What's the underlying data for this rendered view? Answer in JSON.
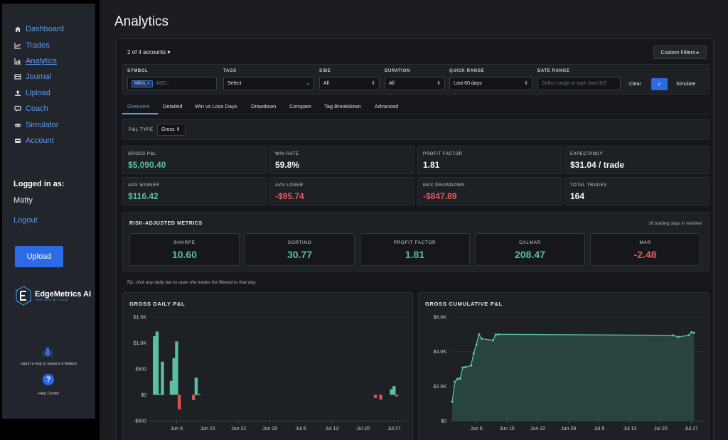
{
  "nav": [
    {
      "label": "Dashboard",
      "icon": "home-icon"
    },
    {
      "label": "Trades",
      "icon": "line-chart-icon"
    },
    {
      "label": "Analytics",
      "icon": "bar-chart-icon"
    },
    {
      "label": "Journal",
      "icon": "book-icon"
    },
    {
      "label": "Upload",
      "icon": "upload-icon"
    },
    {
      "label": "Coach",
      "icon": "chat-icon"
    },
    {
      "label": "Simulator",
      "icon": "gamepad-icon"
    },
    {
      "label": "Account",
      "icon": "card-icon"
    }
  ],
  "user": {
    "logged_label": "Logged in as:",
    "name": "Matty",
    "logout": "Logout"
  },
  "sidebar_upload": "Upload",
  "logo": {
    "name": "EdgeMetrics AI",
    "tagline": "TURN DATA INTO EDGE"
  },
  "help": {
    "bug": "report a bug or request a feature",
    "center": "Help Center"
  },
  "page_title": "Analytics",
  "accounts": "2 of 4 accounts ▾",
  "custom_filters": "Custom Filters ▸",
  "filters": {
    "symbol_label": "SYMBOL",
    "symbol_chip": "MRVL ×",
    "symbol_placeholder": "ADD...",
    "tags_label": "TAGS",
    "tags_value": "Select",
    "side_label": "SIDE",
    "side_value": "All",
    "duration_label": "DURATION",
    "duration_value": "All",
    "quick_label": "QUICK RANGE",
    "quick_value": "Last 60 days",
    "date_label": "DATE RANGE",
    "date_placeholder": "Select range or type Jan/10/2",
    "clear": "Clear",
    "apply": "✓",
    "simulate": "Simulate"
  },
  "tabs": [
    "Overview",
    "Detailed",
    "Win vs Loss Days",
    "Drawdown",
    "Compare",
    "Tag Breakdown",
    "Advanced"
  ],
  "pl_type": {
    "label": "P&L TYPE",
    "value": "Gross ⇕"
  },
  "stats": [
    {
      "label": "GROSS P&L",
      "value": "$5,090.40",
      "tone": "pos"
    },
    {
      "label": "WIN RATE",
      "value": "59.8%",
      "tone": "neu"
    },
    {
      "label": "PROFIT FACTOR",
      "value": "1.81",
      "tone": "neu"
    },
    {
      "label": "EXPECTANCY",
      "value": "$31.04 / trade",
      "tone": "neu"
    },
    {
      "label": "AVG WINNER",
      "value": "$116.42",
      "tone": "pos"
    },
    {
      "label": "AVG LOSER",
      "value": "-$95.74",
      "tone": "neg"
    },
    {
      "label": "MAX DRAWDOWN",
      "value": "-$847.89",
      "tone": "neg"
    },
    {
      "label": "TOTAL TRADES",
      "value": "164",
      "tone": "neu"
    }
  ],
  "risk": {
    "title": "RISK-ADJUSTED METRICS",
    "note": "16 trading days in window",
    "cards": [
      {
        "label": "SHARPE",
        "value": "10.60",
        "tone": "pos"
      },
      {
        "label": "SORTINO",
        "value": "30.77",
        "tone": "pos"
      },
      {
        "label": "PROFIT FACTOR",
        "value": "1.81",
        "tone": "pos"
      },
      {
        "label": "CALMAR",
        "value": "208.47",
        "tone": "pos"
      },
      {
        "label": "MAR",
        "value": "-2.48",
        "tone": "neg"
      }
    ]
  },
  "tip": "Tip: click any daily bar to open the trades list filtered to that day.",
  "colors": {
    "positive": "#5bbfa4",
    "negative": "#d9534f",
    "accent": "#2d6be6"
  },
  "chart_data": [
    {
      "type": "bar",
      "title": "GROSS DAILY P&L",
      "ytick_labels": [
        "$1.5K",
        "$1.0K",
        "$500",
        "$0",
        "-$500"
      ],
      "ytick_values": [
        1500,
        1000,
        500,
        0,
        -500
      ],
      "ylim": [
        -500,
        1500
      ],
      "xtick_labels": [
        "Jun 8",
        "Jun 15",
        "Jun 22",
        "Jun 29",
        "Jul 6",
        "Jul 13",
        "Jul 20",
        "Jul 27"
      ],
      "xlim_days": [
        0,
        58
      ],
      "xtick_days": [
        6,
        13,
        20,
        27,
        34,
        41,
        48,
        55
      ],
      "bars": [
        {
          "day": 1.0,
          "value": 1130
        },
        {
          "day": 1.6,
          "value": 1220
        },
        {
          "day": 2.2,
          "value": 20
        },
        {
          "day": 2.8,
          "value": 640
        },
        {
          "day": 4.8,
          "value": 270
        },
        {
          "day": 5.4,
          "value": 710
        },
        {
          "day": 6.0,
          "value": 1030
        },
        {
          "day": 6.6,
          "value": -280
        },
        {
          "day": 9.8,
          "value": -100
        },
        {
          "day": 10.4,
          "value": 330
        },
        {
          "day": 11.0,
          "value": 20
        },
        {
          "day": 50.8,
          "value": -60
        },
        {
          "day": 52.0,
          "value": -90
        },
        {
          "day": 54.4,
          "value": 110
        },
        {
          "day": 55.0,
          "value": 170
        },
        {
          "day": 55.6,
          "value": -30
        }
      ]
    },
    {
      "type": "area",
      "title": "GROSS CUMULATIVE P&L",
      "ytick_labels": [
        "$6.0K",
        "$4.0K",
        "$2.0K",
        "$0"
      ],
      "ytick_values": [
        6000,
        4000,
        2000,
        0
      ],
      "ylim": [
        0,
        6000
      ],
      "xtick_labels": [
        "Jun 8",
        "Jun 15",
        "Jun 22",
        "Jun 29",
        "Jul 6",
        "Jul 13",
        "Jul 20",
        "Jul 27"
      ],
      "xlim_days": [
        0,
        58
      ],
      "xtick_days": [
        6,
        13,
        20,
        27,
        34,
        41,
        48,
        55
      ],
      "points": [
        {
          "day": 0.5,
          "value": 1100
        },
        {
          "day": 1.1,
          "value": 2250
        },
        {
          "day": 1.7,
          "value": 2420
        },
        {
          "day": 2.3,
          "value": 2440
        },
        {
          "day": 2.9,
          "value": 3080
        },
        {
          "day": 3.5,
          "value": 3100
        },
        {
          "day": 4.8,
          "value": 3200
        },
        {
          "day": 5.4,
          "value": 3900
        },
        {
          "day": 6.0,
          "value": 4400
        },
        {
          "day": 6.6,
          "value": 5000
        },
        {
          "day": 7.2,
          "value": 4750
        },
        {
          "day": 9.8,
          "value": 4650
        },
        {
          "day": 10.4,
          "value": 4980
        },
        {
          "day": 11.0,
          "value": 5000
        },
        {
          "day": 50.8,
          "value": 4940
        },
        {
          "day": 52.0,
          "value": 4850
        },
        {
          "day": 54.4,
          "value": 4950
        },
        {
          "day": 55.0,
          "value": 5120
        },
        {
          "day": 55.6,
          "value": 5090
        }
      ]
    }
  ]
}
